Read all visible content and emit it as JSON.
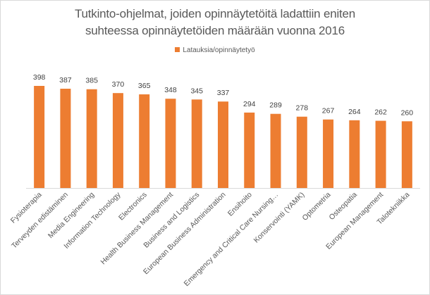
{
  "chart_data": {
    "type": "bar",
    "title_lines": [
      "Tutkinto-ohjelmat, joiden opinnäytetöitä ladattiin eniten",
      "suhteessa opinnäytetöiden määrään vuonna 2016"
    ],
    "legend": {
      "position": "top",
      "entries": [
        "Latauksia/opinnäytetyö"
      ]
    },
    "xlabel": "",
    "ylabel": "",
    "ylim": [
      0,
      400
    ],
    "grid": false,
    "categories": [
      "Fysioterapia",
      "Terveyden edistäminen",
      "Media Engineering",
      "Information Technology",
      "Electronics",
      "Health Business Management",
      "Business and Logistics",
      "European Business Administration",
      "Ensihoito",
      "Emergency and Critical Care Nursing…",
      "Konservointi (YAMK)",
      "Optometria",
      "Osteopatia",
      "European Management",
      "Talotekniikka"
    ],
    "series": [
      {
        "name": "Latauksia/opinnäytetyö",
        "color": "#ED7D31",
        "values": [
          398,
          387,
          385,
          370,
          365,
          348,
          345,
          337,
          294,
          289,
          278,
          267,
          264,
          262,
          260
        ]
      }
    ]
  }
}
